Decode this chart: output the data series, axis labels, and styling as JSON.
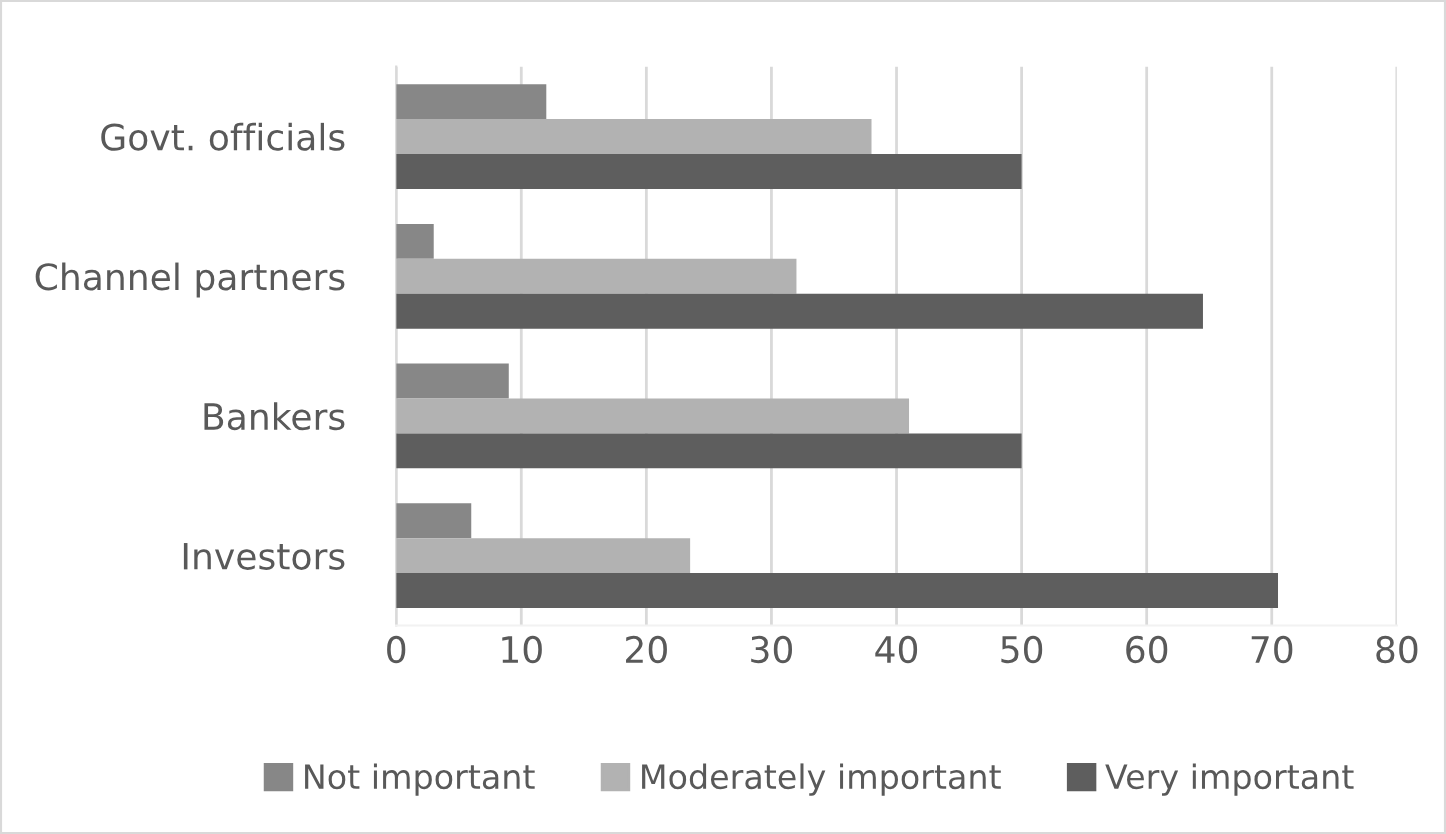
{
  "chart_data": {
    "type": "bar",
    "orientation": "horizontal",
    "categories": [
      "Govt. officials",
      "Channel partners",
      "Bankers",
      "Investors"
    ],
    "series": [
      {
        "name": "Not important",
        "color": "#878787",
        "values": [
          12,
          3,
          9,
          6
        ]
      },
      {
        "name": "Moderately important",
        "color": "#b2b2b2",
        "values": [
          38,
          32,
          41,
          23.5
        ]
      },
      {
        "name": "Very important",
        "color": "#5e5e5e",
        "values": [
          50,
          64.5,
          50,
          70.5
        ]
      }
    ],
    "xlim": [
      0,
      80
    ],
    "xticks": [
      0,
      10,
      20,
      30,
      40,
      50,
      60,
      70,
      80
    ],
    "grid": "x",
    "legend": "bottom"
  }
}
